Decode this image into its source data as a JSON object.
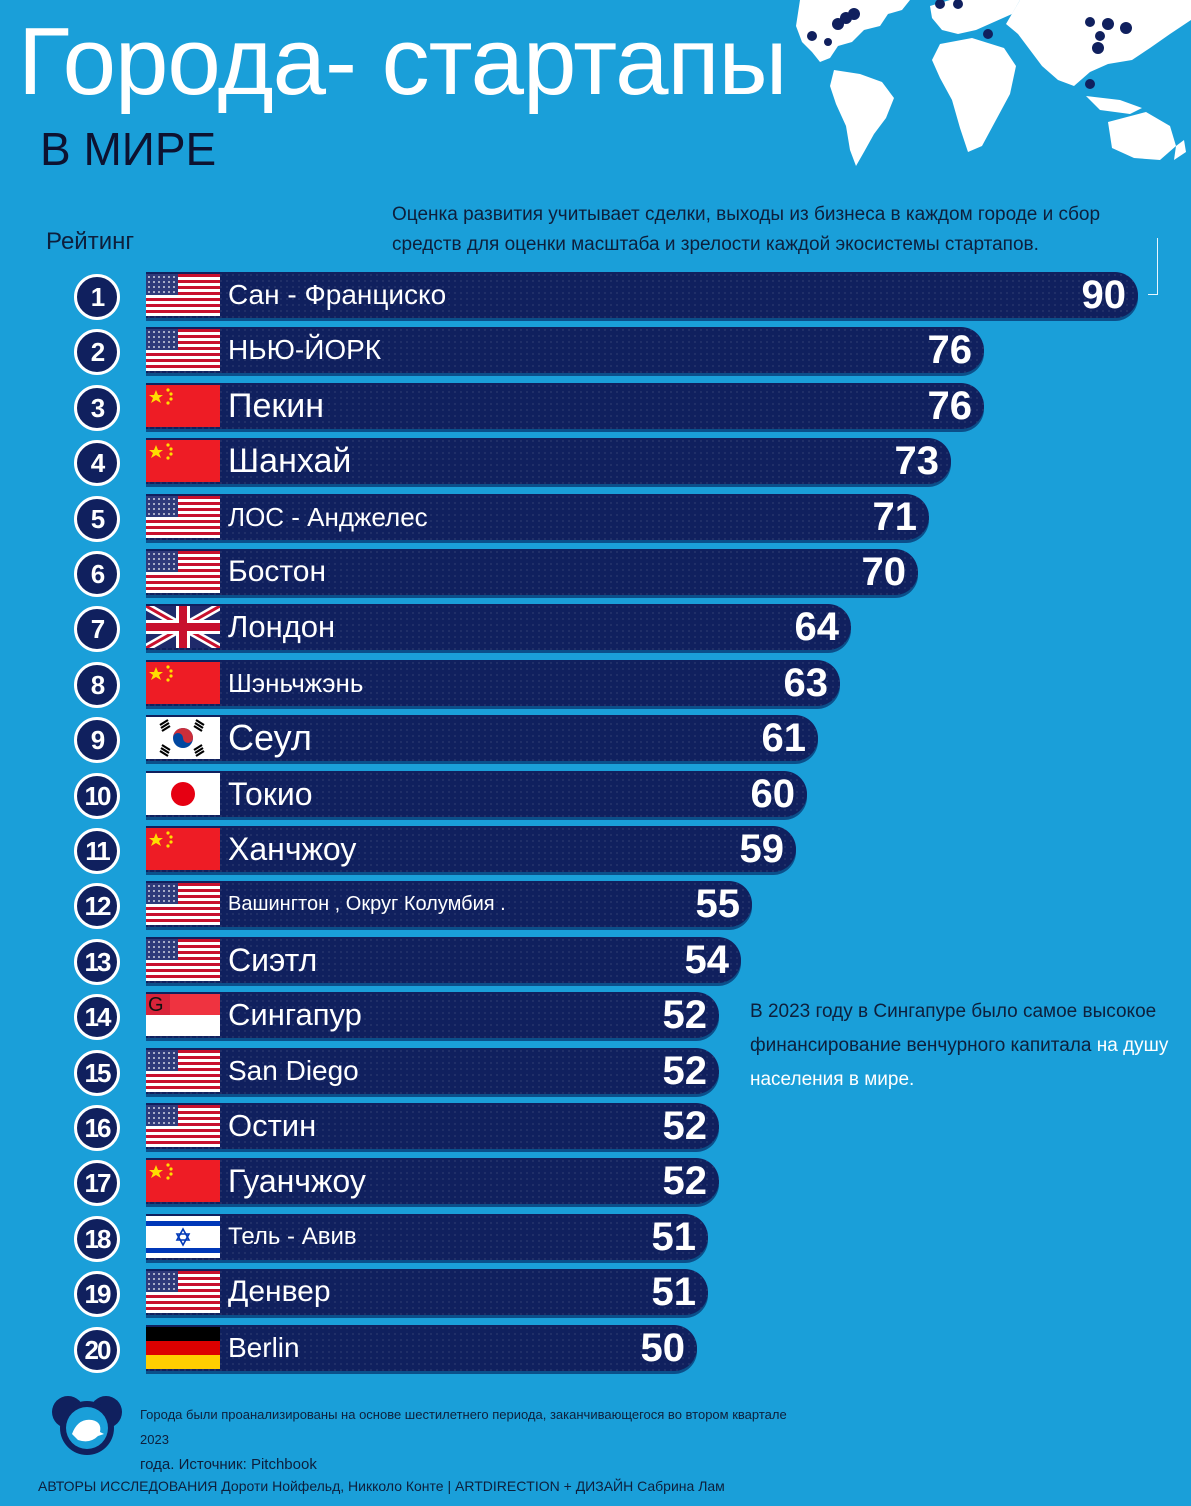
{
  "header": {
    "title": "Города- стартапы",
    "subtitle": "В МИРЕ"
  },
  "notes": {
    "methodology": "Оценка развития учитывает сделки, выходы из бизнеса в каждом городе и сбор средств для оценки масштаба и зрелости каждой экосистемы стартапов.",
    "singapore_prefix": "В 2023 году в Сингапуре было самое высокое финансирование венчурного капитала",
    "singapore_highlight": "на душу населения в мире."
  },
  "chart_data": {
    "type": "bar",
    "orientation": "horizontal",
    "title": "Города- стартапы В МИРЕ",
    "ylabel": "Рейтинг",
    "xlim": [
      0,
      90
    ],
    "rows": [
      {
        "rank": "1",
        "city": "Сан - Франциско",
        "value": 90,
        "flag": "us"
      },
      {
        "rank": "2",
        "city": "НЬЮ-ЙОРК",
        "value": 76,
        "flag": "us"
      },
      {
        "rank": "3",
        "city": "Пекин",
        "value": 76,
        "flag": "cn"
      },
      {
        "rank": "4",
        "city": "Шанхай",
        "value": 73,
        "flag": "cn"
      },
      {
        "rank": "5",
        "city": "ЛОС - Анджелес",
        "value": 71,
        "flag": "us"
      },
      {
        "rank": "6",
        "city": "Бостон",
        "value": 70,
        "flag": "us"
      },
      {
        "rank": "7",
        "city": "Лондон",
        "value": 64,
        "flag": "uk"
      },
      {
        "rank": "8",
        "city": "Шэньчжэнь",
        "value": 63,
        "flag": "cn"
      },
      {
        "rank": "9",
        "city": "Сеул",
        "value": 61,
        "flag": "kr"
      },
      {
        "rank": "10",
        "city": "Токио",
        "value": 60,
        "flag": "jp"
      },
      {
        "rank": "11",
        "city": "Ханчжоу",
        "value": 59,
        "flag": "cn"
      },
      {
        "rank": "12",
        "city": "Вашингтон , Округ Колумбия .",
        "value": 55,
        "flag": "us"
      },
      {
        "rank": "13",
        "city": "Сиэтл",
        "value": 54,
        "flag": "us"
      },
      {
        "rank": "14",
        "city": "Сингапур",
        "value": 52,
        "flag": "sg"
      },
      {
        "rank": "15",
        "city": "San Diego",
        "value": 52,
        "flag": "us"
      },
      {
        "rank": "16",
        "city": "Остин",
        "value": 52,
        "flag": "us"
      },
      {
        "rank": "17",
        "city": "Гуанчжоу",
        "value": 52,
        "flag": "cn"
      },
      {
        "rank": "18",
        "city": "Тель - Авив",
        "value": 51,
        "flag": "il"
      },
      {
        "rank": "19",
        "city": "Денвер",
        "value": 51,
        "flag": "us"
      },
      {
        "rank": "20",
        "city": "Berlin",
        "value": 50,
        "flag": "de"
      }
    ]
  },
  "flag_text": {
    "sg": "G"
  },
  "footer": {
    "source_line1": "Города были проанализированы на основе шестилетнего периода, заканчивающегося во втором квартале 2023",
    "source_line2": "года. Источник: Pitchbook",
    "credits": "АВТОРЫ ИССЛЕДОВАНИЯ Дороти Нойфельд, Никколо Конте | ARTDIRECTION + ДИЗАЙН Сабрина Лам"
  },
  "colors": {
    "background": "#1a9fd9",
    "bar": "#10205e",
    "text_dark": "#0d1f3c"
  }
}
